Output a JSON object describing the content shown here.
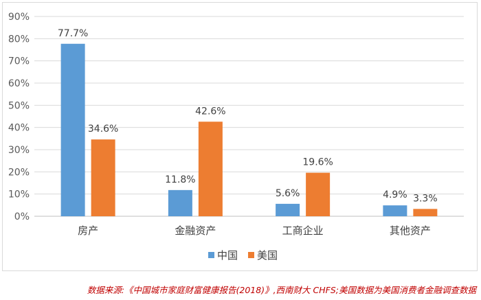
{
  "chart_data": {
    "type": "bar",
    "categories": [
      "房产",
      "金融资产",
      "工商企业",
      "其他资产"
    ],
    "series": [
      {
        "name": "中国",
        "values": [
          77.7,
          11.8,
          5.6,
          4.9
        ],
        "color": "#5b9bd5"
      },
      {
        "name": "美国",
        "values": [
          34.6,
          42.6,
          19.6,
          3.3
        ],
        "color": "#ed7d31"
      }
    ],
    "data_labels": [
      [
        "77.7%",
        "11.8%",
        "5.6%",
        "4.9%"
      ],
      [
        "34.6%",
        "42.6%",
        "19.6%",
        "3.3%"
      ]
    ],
    "yticks": [
      "0%",
      "10%",
      "20%",
      "30%",
      "40%",
      "50%",
      "60%",
      "70%",
      "80%",
      "90%"
    ],
    "ylim": [
      0,
      90
    ],
    "grid": true,
    "legend": "bottom-center",
    "title": "",
    "xlabel": "",
    "ylabel": ""
  },
  "source_note": "数据来源:《中国城市家庭财富健康报告(2018)》,西南财大 CHFS;美国数据为美国消费者金融调查数据"
}
